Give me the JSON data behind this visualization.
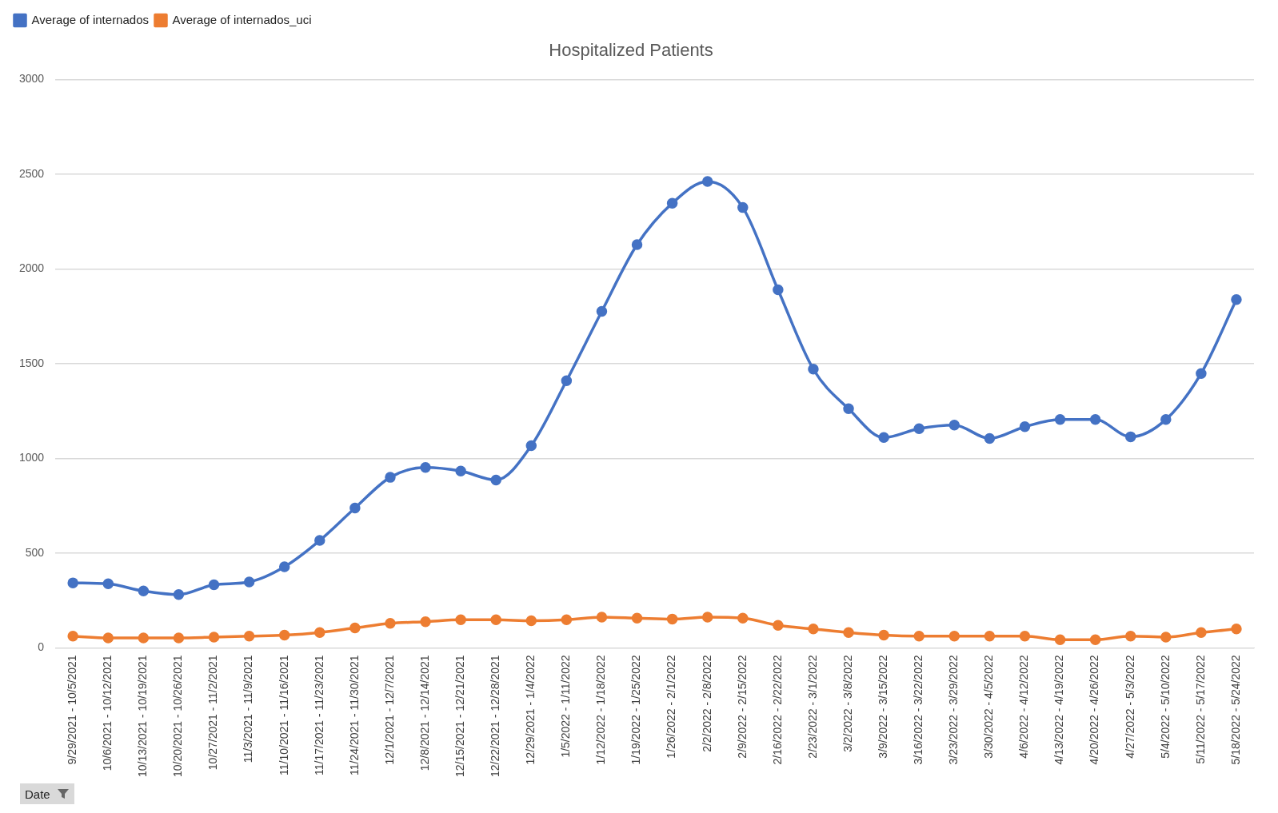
{
  "chart_data": {
    "type": "line",
    "title": "Hospitalized Patients",
    "xlabel": "Date",
    "categories": [
      "9/29/2021 - 10/5/2021",
      "10/6/2021 - 10/12/2021",
      "10/13/2021 - 10/19/2021",
      "10/20/2021 - 10/26/2021",
      "10/27/2021 - 11/2/2021",
      "11/3/2021 - 11/9/2021",
      "11/10/2021 - 11/16/2021",
      "11/17/2021 - 11/23/2021",
      "11/24/2021 - 11/30/2021",
      "12/1/2021 - 12/7/2021",
      "12/8/2021 - 12/14/2021",
      "12/15/2021 - 12/21/2021",
      "12/22/2021 - 12/28/2021",
      "12/29/2021 - 1/4/2022",
      "1/5/2022 - 1/11/2022",
      "1/12/2022 - 1/18/2022",
      "1/19/2022 - 1/25/2022",
      "1/26/2022 - 2/1/2022",
      "2/2/2022 - 2/8/2022",
      "2/9/2022 - 2/15/2022",
      "2/16/2022 - 2/22/2022",
      "2/23/2022 - 3/1/2022",
      "3/2/2022 - 3/8/2022",
      "3/9/2022 - 3/15/2022",
      "3/16/2022 - 3/22/2022",
      "3/23/2022 - 3/29/2022",
      "3/30/2022 - 4/5/2022",
      "4/6/2022 - 4/12/2022",
      "4/13/2022 - 4/19/2022",
      "4/20/2022 - 4/26/2022",
      "4/27/2022 - 5/3/2022",
      "5/4/2022 - 5/10/2022",
      "5/11/2022 - 5/17/2022",
      "5/18/2022 - 5/24/2022"
    ],
    "series": [
      {
        "name": "Average of internados",
        "color": "#4472c4",
        "values": [
          343,
          338,
          300,
          281,
          333,
          348,
          428,
          567,
          738,
          900,
          952,
          933,
          886,
          1067,
          1410,
          1776,
          2128,
          2347,
          2462,
          2324,
          1890,
          1471,
          1262,
          1110,
          1157,
          1176,
          1105,
          1167,
          1205,
          1205,
          1114,
          1205,
          1448,
          1838
        ]
      },
      {
        "name": "Average of internados_uci",
        "color": "#ed7d31",
        "values": [
          62,
          52,
          52,
          52,
          57,
          62,
          67,
          81,
          105,
          129,
          138,
          148,
          148,
          143,
          148,
          162,
          157,
          152,
          162,
          157,
          119,
          100,
          81,
          67,
          62,
          62,
          62,
          62,
          43,
          43,
          62,
          57,
          81,
          100
        ]
      }
    ],
    "ylim": [
      0,
      3000
    ],
    "yticks": [
      0,
      500,
      1000,
      1500,
      2000,
      2500,
      3000
    ],
    "grid": "y",
    "legend": "top left",
    "marker": "circle",
    "line_style": "solid"
  }
}
